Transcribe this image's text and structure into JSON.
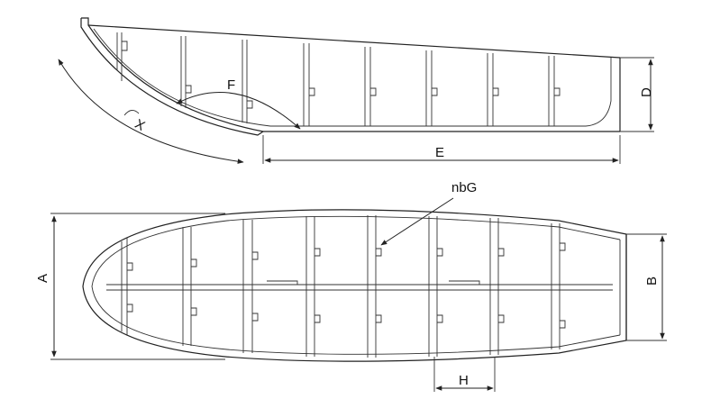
{
  "labels": {
    "a": "A",
    "b": "B",
    "d": "D",
    "e": "E",
    "f": "F",
    "h": "H",
    "x": "X",
    "callout": "nbG"
  },
  "colors": {
    "line": "#222222",
    "background": "#ffffff"
  }
}
